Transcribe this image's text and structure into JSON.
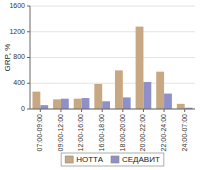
{
  "chart_data": {
    "type": "bar",
    "categories": [
      "07:00-09:00",
      "09:00-12:00",
      "12:00-16:00",
      "16:00-18:00",
      "18:00-20:00",
      "20:00-22:00",
      "22:00-24:00",
      "24:00-07:00"
    ],
    "series": [
      {
        "name": "НОТТА",
        "color": "#c8a882",
        "values": [
          270,
          150,
          160,
          390,
          600,
          1280,
          580,
          80
        ]
      },
      {
        "name": "СЕДАВИТ",
        "color": "#9090c8",
        "values": [
          60,
          160,
          170,
          120,
          180,
          420,
          240,
          20
        ]
      }
    ],
    "ylabel": "GRP, %",
    "ylim": [
      0,
      1600
    ],
    "yticks": [
      0,
      400,
      800,
      1200,
      1600
    ],
    "grid": true,
    "legend": "bottom"
  }
}
